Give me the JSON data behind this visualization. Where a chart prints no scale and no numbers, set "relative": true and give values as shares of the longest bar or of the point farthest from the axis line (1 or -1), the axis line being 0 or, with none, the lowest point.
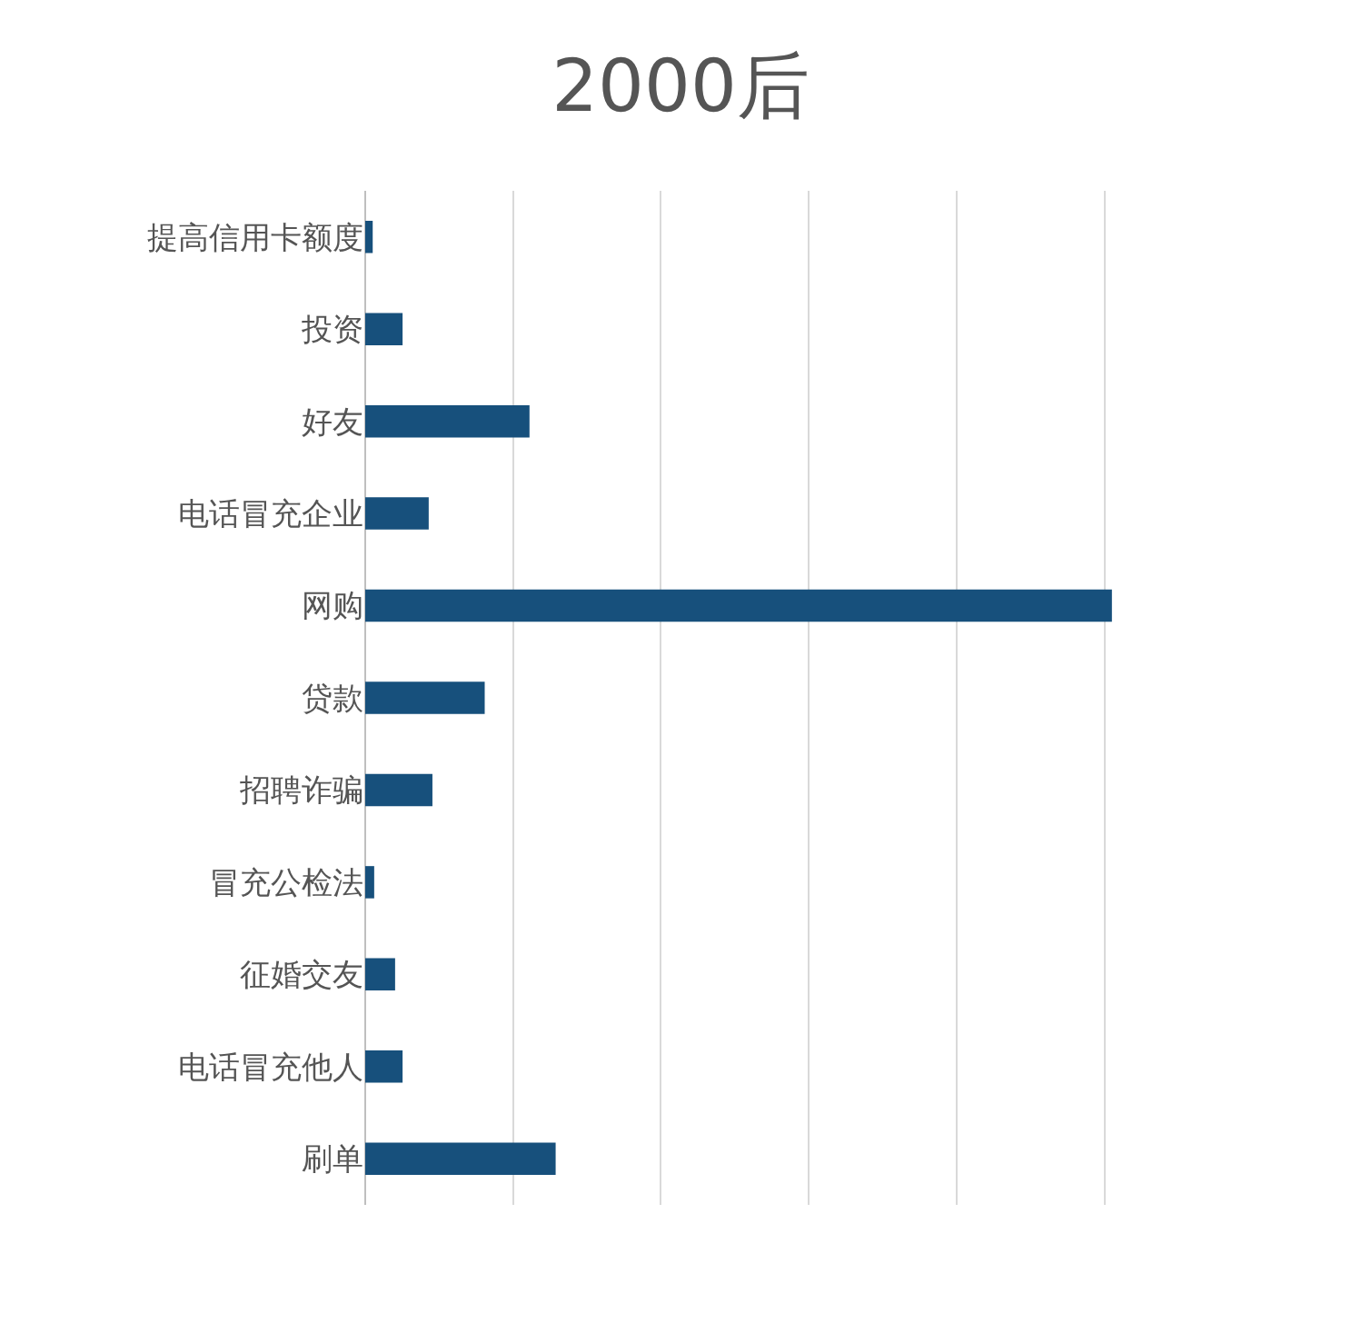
{
  "chart_data": {
    "type": "bar",
    "orientation": "horizontal",
    "relative": true,
    "title": "2000后",
    "categories": [
      "提高信用卡额度",
      "投资",
      "好友",
      "电话冒充企业",
      "网购",
      "贷款",
      "招聘诈骗",
      "冒充公检法",
      "征婚交友",
      "电话冒充他人",
      "刷单"
    ],
    "values": [
      0.01,
      0.05,
      0.22,
      0.085,
      1,
      0.16,
      0.09,
      0.012,
      0.04,
      0.05,
      0.255
    ],
    "color": "#17507c",
    "grid": "x"
  }
}
